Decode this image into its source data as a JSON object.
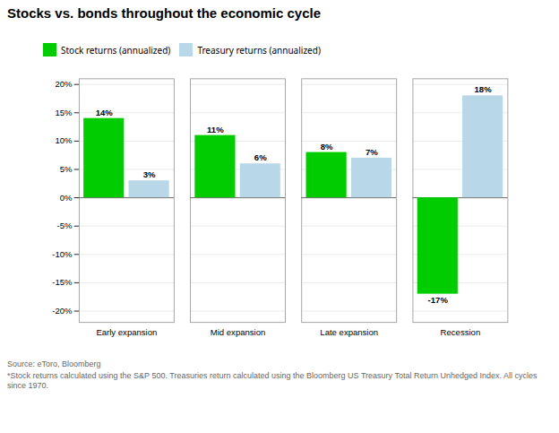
{
  "chart_data": {
    "type": "bar",
    "title": "Stocks vs. bonds throughout the economic cycle",
    "categories": [
      "Early expansion",
      "Mid expansion",
      "Late expansion",
      "Recession"
    ],
    "series": [
      {
        "name": "Stock returns (annualized)",
        "color": "#00cc00",
        "values": [
          14,
          11,
          8,
          -17
        ],
        "value_labels": [
          "14%",
          "11%",
          "8%",
          "-17%"
        ]
      },
      {
        "name": "Treasury returns (annualized)",
        "color": "#b8d8e8",
        "values": [
          3,
          6,
          7,
          18
        ],
        "value_labels": [
          "3%",
          "6%",
          "7%",
          "18%"
        ]
      }
    ],
    "ylim": [
      -22,
      21
    ],
    "yticks": [
      {
        "value": -20,
        "label": "-20%"
      },
      {
        "value": -15,
        "label": "-15%"
      },
      {
        "value": -10,
        "label": "-10%"
      },
      {
        "value": -5,
        "label": "-5%"
      },
      {
        "value": 0,
        "label": "0%"
      },
      {
        "value": 5,
        "label": "5%"
      },
      {
        "value": 10,
        "label": "10%"
      },
      {
        "value": 15,
        "label": "15%"
      },
      {
        "value": 20,
        "label": "20%"
      }
    ],
    "grid": true,
    "legend": "upper left",
    "data_labels": true,
    "annotations": [
      "Source: eToro, Bloomberg",
      "*Stock returns calculated using the S&P 500. Treasuries return calculated using the Bloomberg US Treasury Total Return Unhedged Index. All cycles since 1970."
    ]
  }
}
